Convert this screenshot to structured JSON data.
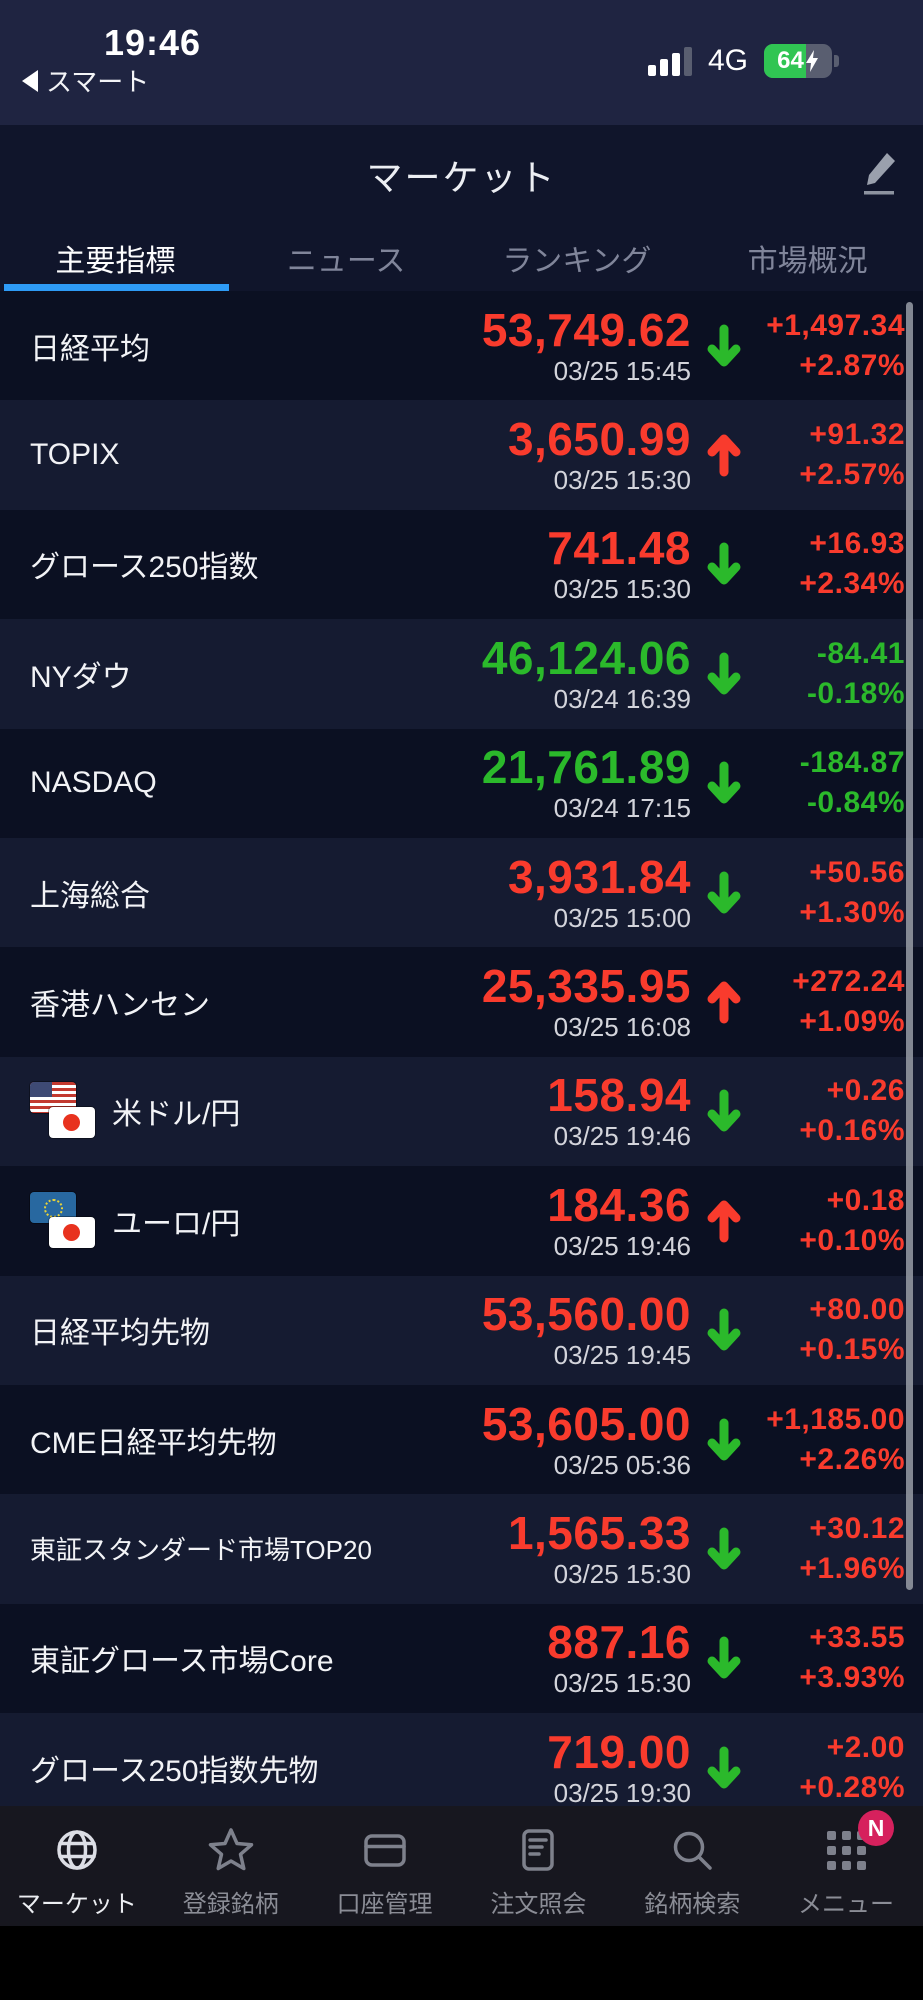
{
  "colors": {
    "up_red": "#f93b2d",
    "down_green": "#2bb92b",
    "tab_accent_blue": "#2e9bf6",
    "badge_pink": "#d6215d",
    "battery_green": "#30c553"
  },
  "status_bar": {
    "time": "19:46",
    "back_app_label": "スマート",
    "back_icon": "back-triangle-icon",
    "signal_icon": "cellular-signal-icon",
    "network": "4G",
    "battery_icon": "battery-charging-icon",
    "battery_percent": "64"
  },
  "header": {
    "title": "マーケット",
    "edit_icon": "pencil-edit-icon"
  },
  "tabs": [
    {
      "id": "tab-main-indicators",
      "label": "主要指標",
      "active": true
    },
    {
      "id": "tab-news",
      "label": "ニュース",
      "active": false
    },
    {
      "id": "tab-ranking",
      "label": "ランキング",
      "active": false
    },
    {
      "id": "tab-market-overview",
      "label": "市場概況",
      "active": false
    }
  ],
  "indices": [
    {
      "name": "日経平均",
      "price": "53,749.62",
      "price_color": "red",
      "time": "03/25 15:45",
      "arrow": "down",
      "arrow_color": "green",
      "change": "+1,497.34",
      "change_pct": "+2.87%",
      "change_color": "red"
    },
    {
      "name": "TOPIX",
      "price": "3,650.99",
      "price_color": "red",
      "time": "03/25 15:30",
      "arrow": "up",
      "arrow_color": "red",
      "change": "+91.32",
      "change_pct": "+2.57%",
      "change_color": "red"
    },
    {
      "name": "グロース250指数",
      "price": "741.48",
      "price_color": "red",
      "time": "03/25 15:30",
      "arrow": "down",
      "arrow_color": "green",
      "change": "+16.93",
      "change_pct": "+2.34%",
      "change_color": "red"
    },
    {
      "name": "NYダウ",
      "price": "46,124.06",
      "price_color": "green",
      "time": "03/24 16:39",
      "arrow": "down",
      "arrow_color": "green",
      "change": "-84.41",
      "change_pct": "-0.18%",
      "change_color": "green"
    },
    {
      "name": "NASDAQ",
      "price": "21,761.89",
      "price_color": "green",
      "time": "03/24 17:15",
      "arrow": "down",
      "arrow_color": "green",
      "change": "-184.87",
      "change_pct": "-0.84%",
      "change_color": "green"
    },
    {
      "name": "上海総合",
      "price": "3,931.84",
      "price_color": "red",
      "time": "03/25 15:00",
      "arrow": "down",
      "arrow_color": "green",
      "change": "+50.56",
      "change_pct": "+1.30%",
      "change_color": "red"
    },
    {
      "name": "香港ハンセン",
      "price": "25,335.95",
      "price_color": "red",
      "time": "03/25 16:08",
      "arrow": "up",
      "arrow_color": "red",
      "change": "+272.24",
      "change_pct": "+1.09%",
      "change_color": "red"
    },
    {
      "name": "米ドル/円",
      "flags": "us-jp",
      "flag_icons": [
        "us-flag-icon",
        "japan-flag-icon"
      ],
      "price": "158.94",
      "price_color": "red",
      "time": "03/25 19:46",
      "arrow": "down",
      "arrow_color": "green",
      "change": "+0.26",
      "change_pct": "+0.16%",
      "change_color": "red"
    },
    {
      "name": "ユーロ/円",
      "flags": "eu-jp",
      "flag_icons": [
        "eu-flag-icon",
        "japan-flag-icon"
      ],
      "price": "184.36",
      "price_color": "red",
      "time": "03/25 19:46",
      "arrow": "up",
      "arrow_color": "red",
      "change": "+0.18",
      "change_pct": "+0.10%",
      "change_color": "red"
    },
    {
      "name": "日経平均先物",
      "price": "53,560.00",
      "price_color": "red",
      "time": "03/25 19:45",
      "arrow": "down",
      "arrow_color": "green",
      "change": "+80.00",
      "change_pct": "+0.15%",
      "change_color": "red"
    },
    {
      "name": "CME日経平均先物",
      "price": "53,605.00",
      "price_color": "red",
      "time": "03/25 05:36",
      "arrow": "down",
      "arrow_color": "green",
      "change": "+1,185.00",
      "change_pct": "+2.26%",
      "change_color": "red"
    },
    {
      "name": "東証スタンダード市場TOP20",
      "small": true,
      "price": "1,565.33",
      "price_color": "red",
      "time": "03/25 15:30",
      "arrow": "down",
      "arrow_color": "green",
      "change": "+30.12",
      "change_pct": "+1.96%",
      "change_color": "red"
    },
    {
      "name": "東証グロース市場Core",
      "price": "887.16",
      "price_color": "red",
      "time": "03/25 15:30",
      "arrow": "down",
      "arrow_color": "green",
      "change": "+33.55",
      "change_pct": "+3.93%",
      "change_color": "red"
    },
    {
      "name": "グロース250指数先物",
      "price": "719.00",
      "price_color": "red",
      "time": "03/25 19:30",
      "arrow": "down",
      "arrow_color": "green",
      "change": "+2.00",
      "change_pct": "+0.28%",
      "change_color": "red"
    }
  ],
  "bottom_nav": [
    {
      "id": "nav-market",
      "label": "マーケット",
      "icon": "globe-icon",
      "active": true
    },
    {
      "id": "nav-watchlist",
      "label": "登録銘柄",
      "icon": "star-icon",
      "active": false
    },
    {
      "id": "nav-account",
      "label": "口座管理",
      "icon": "card-icon",
      "active": false
    },
    {
      "id": "nav-orders",
      "label": "注文照会",
      "icon": "order-document-icon",
      "active": false
    },
    {
      "id": "nav-symbol-search",
      "label": "銘柄検索",
      "icon": "search-icon",
      "active": false
    },
    {
      "id": "nav-menu",
      "label": "メニュー",
      "icon": "grid-menu-icon",
      "active": false,
      "badge": "N"
    }
  ]
}
